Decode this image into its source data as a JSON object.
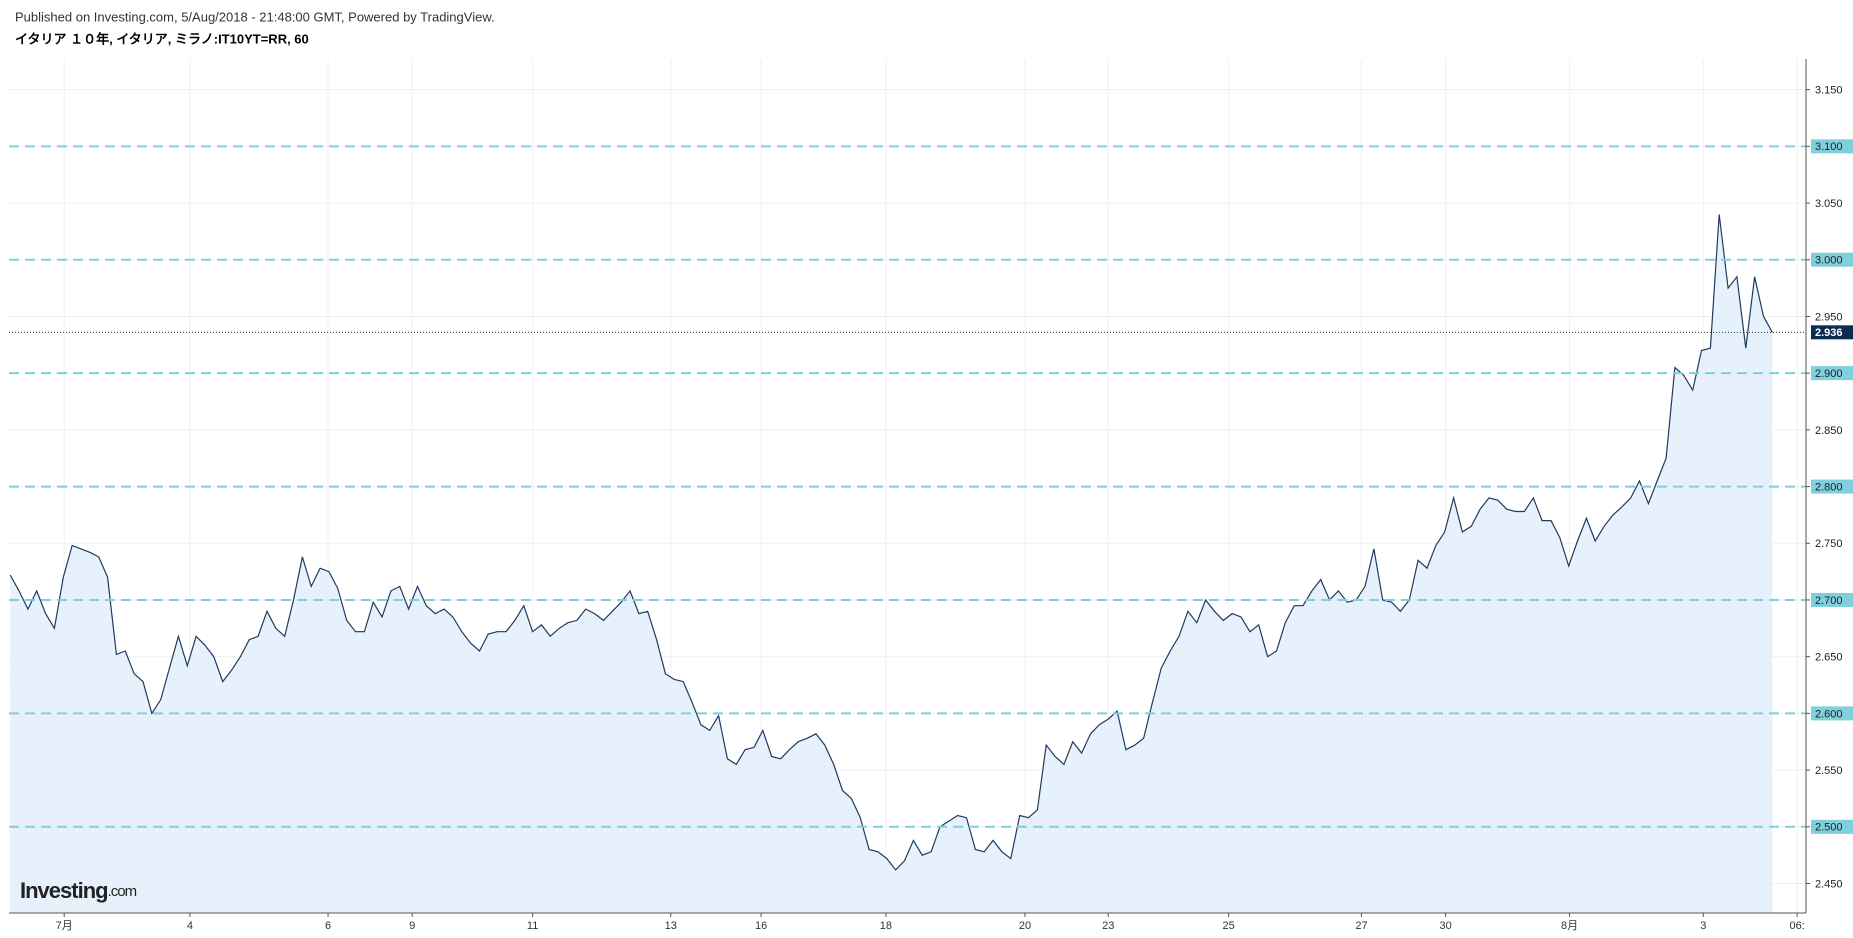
{
  "header": {
    "published": "Published on Investing.com, 5/Aug/2018 - 21:48:00 GMT, Powered by TradingView.",
    "symbol": "イタリア １０年, イタリア, ミラノ:IT10YT=RR, 60"
  },
  "logo": {
    "brand": "Investing",
    "suffix": ".com"
  },
  "chart_data": {
    "type": "area-line",
    "color": "#1f3b5e",
    "fill": "#e3eefa",
    "values": [
      2.722,
      2.708,
      2.692,
      2.708,
      2.688,
      2.675,
      2.72,
      2.748,
      2.745,
      2.742,
      2.738,
      2.72,
      2.652,
      2.655,
      2.635,
      2.628,
      2.6,
      2.612,
      2.64,
      2.668,
      2.642,
      2.668,
      2.66,
      2.65,
      2.628,
      2.638,
      2.65,
      2.665,
      2.668,
      2.69,
      2.675,
      2.668,
      2.7,
      2.738,
      2.712,
      2.728,
      2.725,
      2.71,
      2.682,
      2.672,
      2.672,
      2.698,
      2.685,
      2.708,
      2.712,
      2.692,
      2.712,
      2.695,
      2.688,
      2.692,
      2.685,
      2.672,
      2.662,
      2.655,
      2.67,
      2.672,
      2.672,
      2.682,
      2.695,
      2.672,
      2.678,
      2.668,
      2.675,
      2.68,
      2.682,
      2.692,
      2.688,
      2.682,
      2.69,
      2.698,
      2.708,
      2.688,
      2.69,
      2.665,
      2.635,
      2.63,
      2.628,
      2.61,
      2.59,
      2.585,
      2.598,
      2.56,
      2.555,
      2.568,
      2.57,
      2.585,
      2.562,
      2.56,
      2.568,
      2.575,
      2.578,
      2.582,
      2.572,
      2.555,
      2.532,
      2.525,
      2.508,
      2.48,
      2.478,
      2.472,
      2.462,
      2.47,
      2.488,
      2.475,
      2.478,
      2.5,
      2.505,
      2.51,
      2.508,
      2.48,
      2.478,
      2.488,
      2.478,
      2.472,
      2.51,
      2.508,
      2.515,
      2.572,
      2.562,
      2.555,
      2.575,
      2.565,
      2.582,
      2.59,
      2.595,
      2.602,
      2.568,
      2.572,
      2.578,
      2.61,
      2.64,
      2.655,
      2.668,
      2.69,
      2.68,
      2.7,
      2.69,
      2.682,
      2.688,
      2.685,
      2.672,
      2.678,
      2.65,
      2.655,
      2.68,
      2.695,
      2.695,
      2.708,
      2.718,
      2.7,
      2.708,
      2.698,
      2.7,
      2.712,
      2.745,
      2.7,
      2.698,
      2.69,
      2.7,
      2.735,
      2.728,
      2.748,
      2.76,
      2.79,
      2.76,
      2.765,
      2.78,
      2.79,
      2.788,
      2.78,
      2.778,
      2.778,
      2.79,
      2.77,
      2.77,
      2.755,
      2.73,
      2.752,
      2.772,
      2.752,
      2.765,
      2.775,
      2.782,
      2.79,
      2.805,
      2.785,
      2.805,
      2.825,
      2.905,
      2.898,
      2.885,
      2.92,
      2.922,
      3.04,
      2.975,
      2.985,
      2.922,
      2.985,
      2.95,
      2.936
    ],
    "xlim": [
      -0.13,
      202.8
    ],
    "xticks": [
      {
        "value": 6.1,
        "label": "7月"
      },
      {
        "value": 20.3,
        "label": "4"
      },
      {
        "value": 35.9,
        "label": "6"
      },
      {
        "value": 45.4,
        "label": "9"
      },
      {
        "value": 59.0,
        "label": "11"
      },
      {
        "value": 74.6,
        "label": "13"
      },
      {
        "value": 84.8,
        "label": "16"
      },
      {
        "value": 98.9,
        "label": "18"
      },
      {
        "value": 114.6,
        "label": "20"
      },
      {
        "value": 124.0,
        "label": "23"
      },
      {
        "value": 137.6,
        "label": "25"
      },
      {
        "value": 152.6,
        "label": "27"
      },
      {
        "value": 162.1,
        "label": "30"
      },
      {
        "value": 176.1,
        "label": "8月"
      },
      {
        "value": 191.2,
        "label": "3"
      },
      {
        "value": 201.8,
        "label": "06:"
      }
    ],
    "ylim": [
      2.424,
      3.177
    ],
    "yticks": [
      {
        "value": 2.45,
        "label": "2.450"
      },
      {
        "value": 2.5,
        "label": "2.500"
      },
      {
        "value": 2.55,
        "label": "2.550"
      },
      {
        "value": 2.6,
        "label": "2.600"
      },
      {
        "value": 2.65,
        "label": "2.650"
      },
      {
        "value": 2.7,
        "label": "2.700"
      },
      {
        "value": 2.75,
        "label": "2.750"
      },
      {
        "value": 2.8,
        "label": "2.800"
      },
      {
        "value": 2.85,
        "label": "2.850"
      },
      {
        "value": 2.9,
        "label": "2.900"
      },
      {
        "value": 2.95,
        "label": "2.950"
      },
      {
        "value": 3.0,
        "label": "3.000"
      },
      {
        "value": 3.05,
        "label": "3.050"
      },
      {
        "value": 3.1,
        "label": "3.100"
      },
      {
        "value": 3.15,
        "label": "3.150"
      }
    ],
    "hlines": [
      2.5,
      2.6,
      2.7,
      2.8,
      2.9,
      3.0,
      3.1
    ],
    "hline_color": "#7fcfdc",
    "grid": true
  }
}
